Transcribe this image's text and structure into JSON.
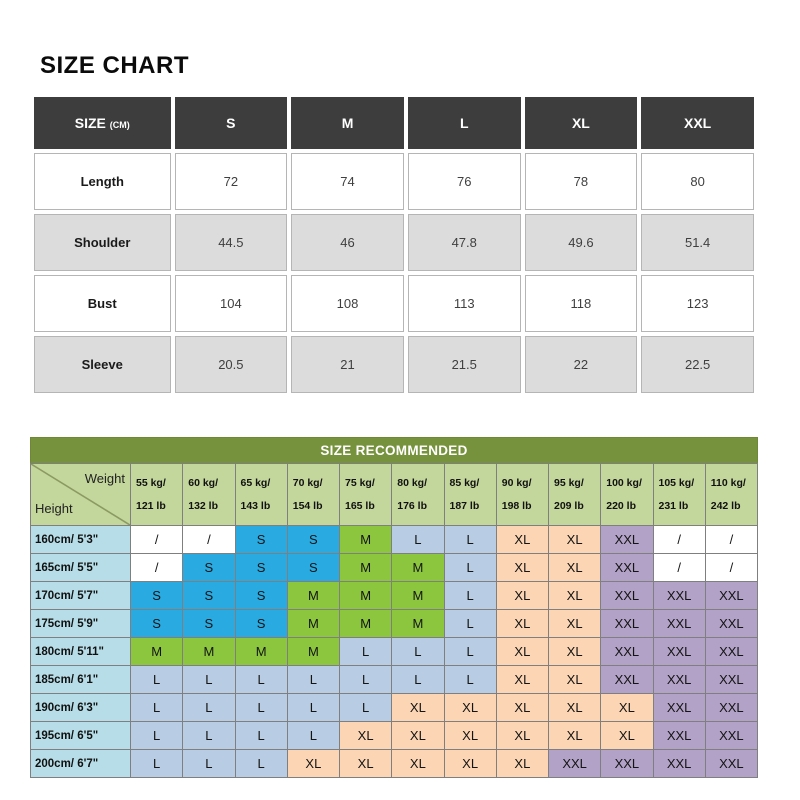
{
  "page_title": "SIZE CHART",
  "size_chart": {
    "header": {
      "size_label": "SIZE",
      "size_unit": "(CM)",
      "columns": [
        "S",
        "M",
        "L",
        "XL",
        "XXL"
      ]
    },
    "rows": [
      {
        "label": "Length",
        "values": [
          "72",
          "74",
          "76",
          "78",
          "80"
        ]
      },
      {
        "label": "Shoulder",
        "values": [
          "44.5",
          "46",
          "47.8",
          "49.6",
          "51.4"
        ]
      },
      {
        "label": "Bust",
        "values": [
          "104",
          "108",
          "113",
          "118",
          "123"
        ]
      },
      {
        "label": "Sleeve",
        "values": [
          "20.5",
          "21",
          "21.5",
          "22",
          "22.5"
        ]
      }
    ]
  },
  "size_recommended": {
    "title": "SIZE RECOMMENDED",
    "corner": {
      "top_right": "Weight",
      "bottom_left": "Height"
    },
    "weight_columns": [
      {
        "kg": "55 kg/",
        "lb": "121 lb"
      },
      {
        "kg": "60 kg/",
        "lb": "132 lb"
      },
      {
        "kg": "65 kg/",
        "lb": "143 lb"
      },
      {
        "kg": "70 kg/",
        "lb": "154 lb"
      },
      {
        "kg": "75 kg/",
        "lb": "165 lb"
      },
      {
        "kg": "80 kg/",
        "lb": "176 lb"
      },
      {
        "kg": "85 kg/",
        "lb": "187 lb"
      },
      {
        "kg": "90 kg/",
        "lb": "198 lb"
      },
      {
        "kg": "95 kg/",
        "lb": "209 lb"
      },
      {
        "kg": "100 kg/",
        "lb": "220 lb"
      },
      {
        "kg": "105 kg/",
        "lb": "231 lb"
      },
      {
        "kg": "110 kg/",
        "lb": "242 lb"
      }
    ],
    "height_rows": [
      {
        "height": "160cm/ 5'3\"",
        "sizes": [
          "/",
          "/",
          "S",
          "S",
          "M",
          "L",
          "L",
          "XL",
          "XL",
          "XXL",
          "/",
          "/"
        ]
      },
      {
        "height": "165cm/ 5'5\"",
        "sizes": [
          "/",
          "S",
          "S",
          "S",
          "M",
          "M",
          "L",
          "XL",
          "XL",
          "XXL",
          "/",
          "/"
        ]
      },
      {
        "height": "170cm/ 5'7\"",
        "sizes": [
          "S",
          "S",
          "S",
          "M",
          "M",
          "M",
          "L",
          "XL",
          "XL",
          "XXL",
          "XXL",
          "XXL"
        ]
      },
      {
        "height": "175cm/ 5'9\"",
        "sizes": [
          "S",
          "S",
          "S",
          "M",
          "M",
          "M",
          "L",
          "XL",
          "XL",
          "XXL",
          "XXL",
          "XXL"
        ]
      },
      {
        "height": "180cm/ 5'11\"",
        "sizes": [
          "M",
          "M",
          "M",
          "M",
          "L",
          "L",
          "L",
          "XL",
          "XL",
          "XXL",
          "XXL",
          "XXL"
        ]
      },
      {
        "height": "185cm/ 6'1\"",
        "sizes": [
          "L",
          "L",
          "L",
          "L",
          "L",
          "L",
          "L",
          "XL",
          "XL",
          "XXL",
          "XXL",
          "XXL"
        ]
      },
      {
        "height": "190cm/ 6'3\"",
        "sizes": [
          "L",
          "L",
          "L",
          "L",
          "L",
          "XL",
          "XL",
          "XL",
          "XL",
          "XL",
          "XXL",
          "XXL"
        ]
      },
      {
        "height": "195cm/ 6'5\"",
        "sizes": [
          "L",
          "L",
          "L",
          "L",
          "XL",
          "XL",
          "XL",
          "XL",
          "XL",
          "XL",
          "XXL",
          "XXL"
        ]
      },
      {
        "height": "200cm/ 6'7\"",
        "sizes": [
          "L",
          "L",
          "L",
          "XL",
          "XL",
          "XL",
          "XL",
          "XL",
          "XXL",
          "XXL",
          "XXL",
          "XXL"
        ]
      }
    ],
    "size_colors": {
      "S": "#29abe2",
      "M": "#8cc63f",
      "L": "#b8cce4",
      "XL": "#fcd5b4",
      "XXL": "#b2a2c7",
      "/": "#ffffff"
    },
    "header_green": "#c3d69b",
    "band_olive": "#76923c",
    "height_col_blue": "#b7dee8"
  }
}
